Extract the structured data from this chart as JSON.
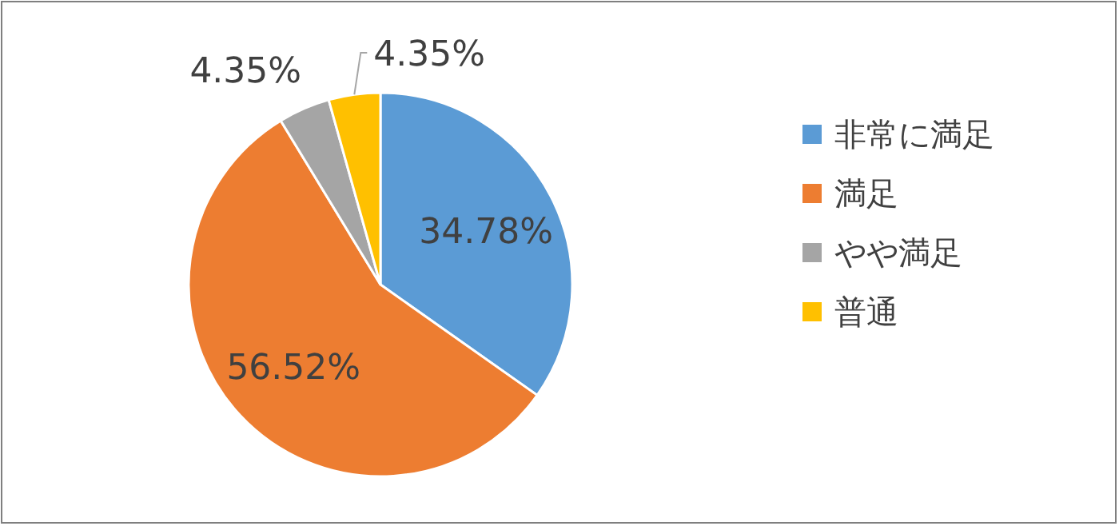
{
  "chart_data": {
    "type": "pie",
    "categories": [
      "非常に満足",
      "満足",
      "やや満足",
      "普通"
    ],
    "values": [
      34.78,
      56.52,
      4.35,
      4.35
    ],
    "colors": [
      "#5b9bd5",
      "#ed7d31",
      "#a5a5a5",
      "#ffc000"
    ],
    "value_labels": [
      "34.78%",
      "56.52%",
      "4.35%",
      "4.35%"
    ],
    "legend": "right"
  }
}
